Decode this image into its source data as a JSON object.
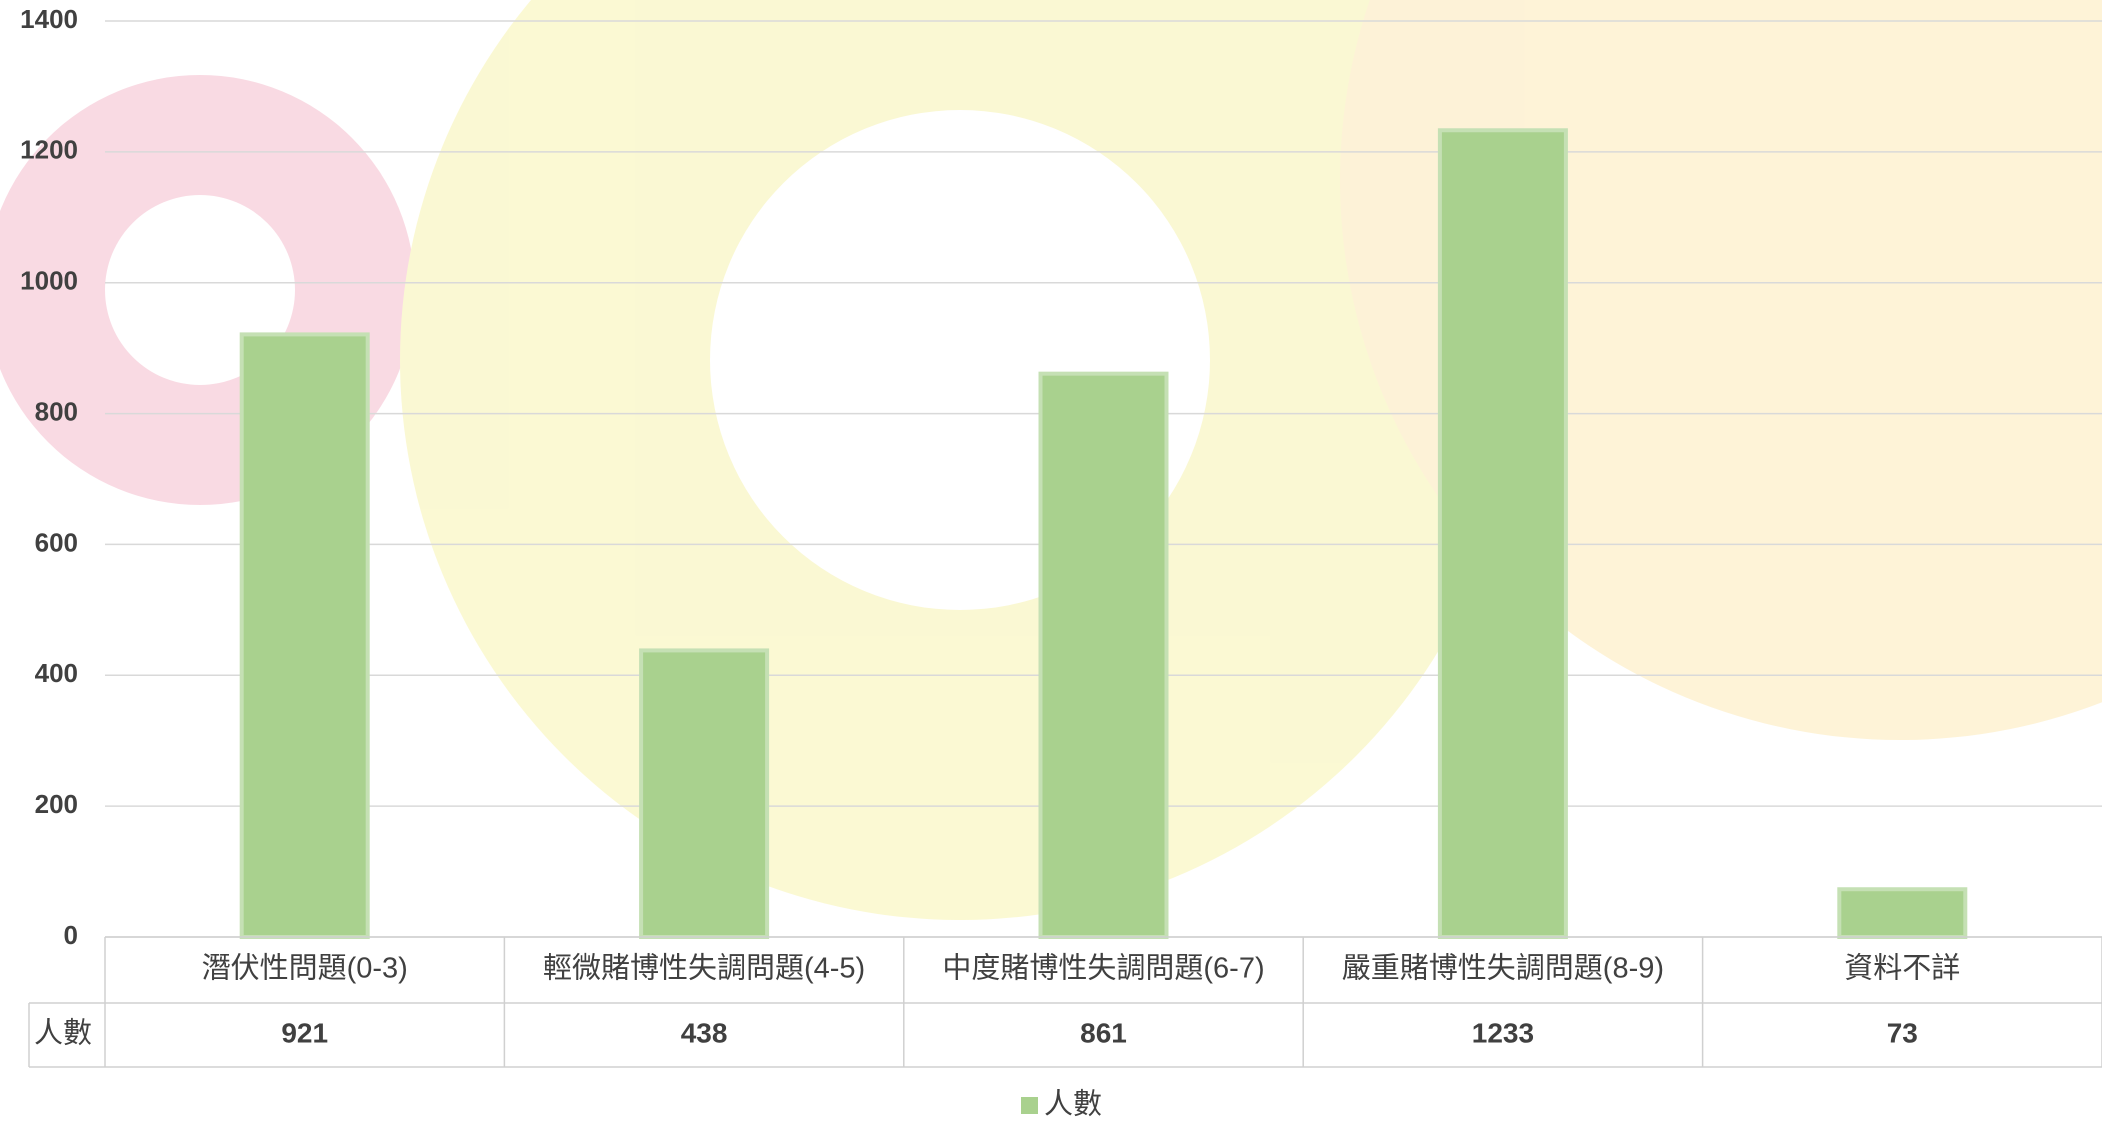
{
  "chart_data": {
    "type": "bar",
    "categories": [
      "潛伏性問題(0-3)",
      "輕微賭博性失調問題(4-5)",
      "中度賭博性失調問題(6-7)",
      "嚴重賭博性失調問題(8-9)",
      "資料不詳"
    ],
    "series": [
      {
        "name": "人數",
        "color": "#a9d18e",
        "values": [
          921,
          438,
          861,
          1233,
          73
        ]
      }
    ],
    "ylim": [
      0,
      1400
    ],
    "yticks": [
      0,
      200,
      400,
      600,
      800,
      1000,
      1200,
      1400
    ],
    "grid": true,
    "legend": "bottom",
    "data_table": true
  }
}
